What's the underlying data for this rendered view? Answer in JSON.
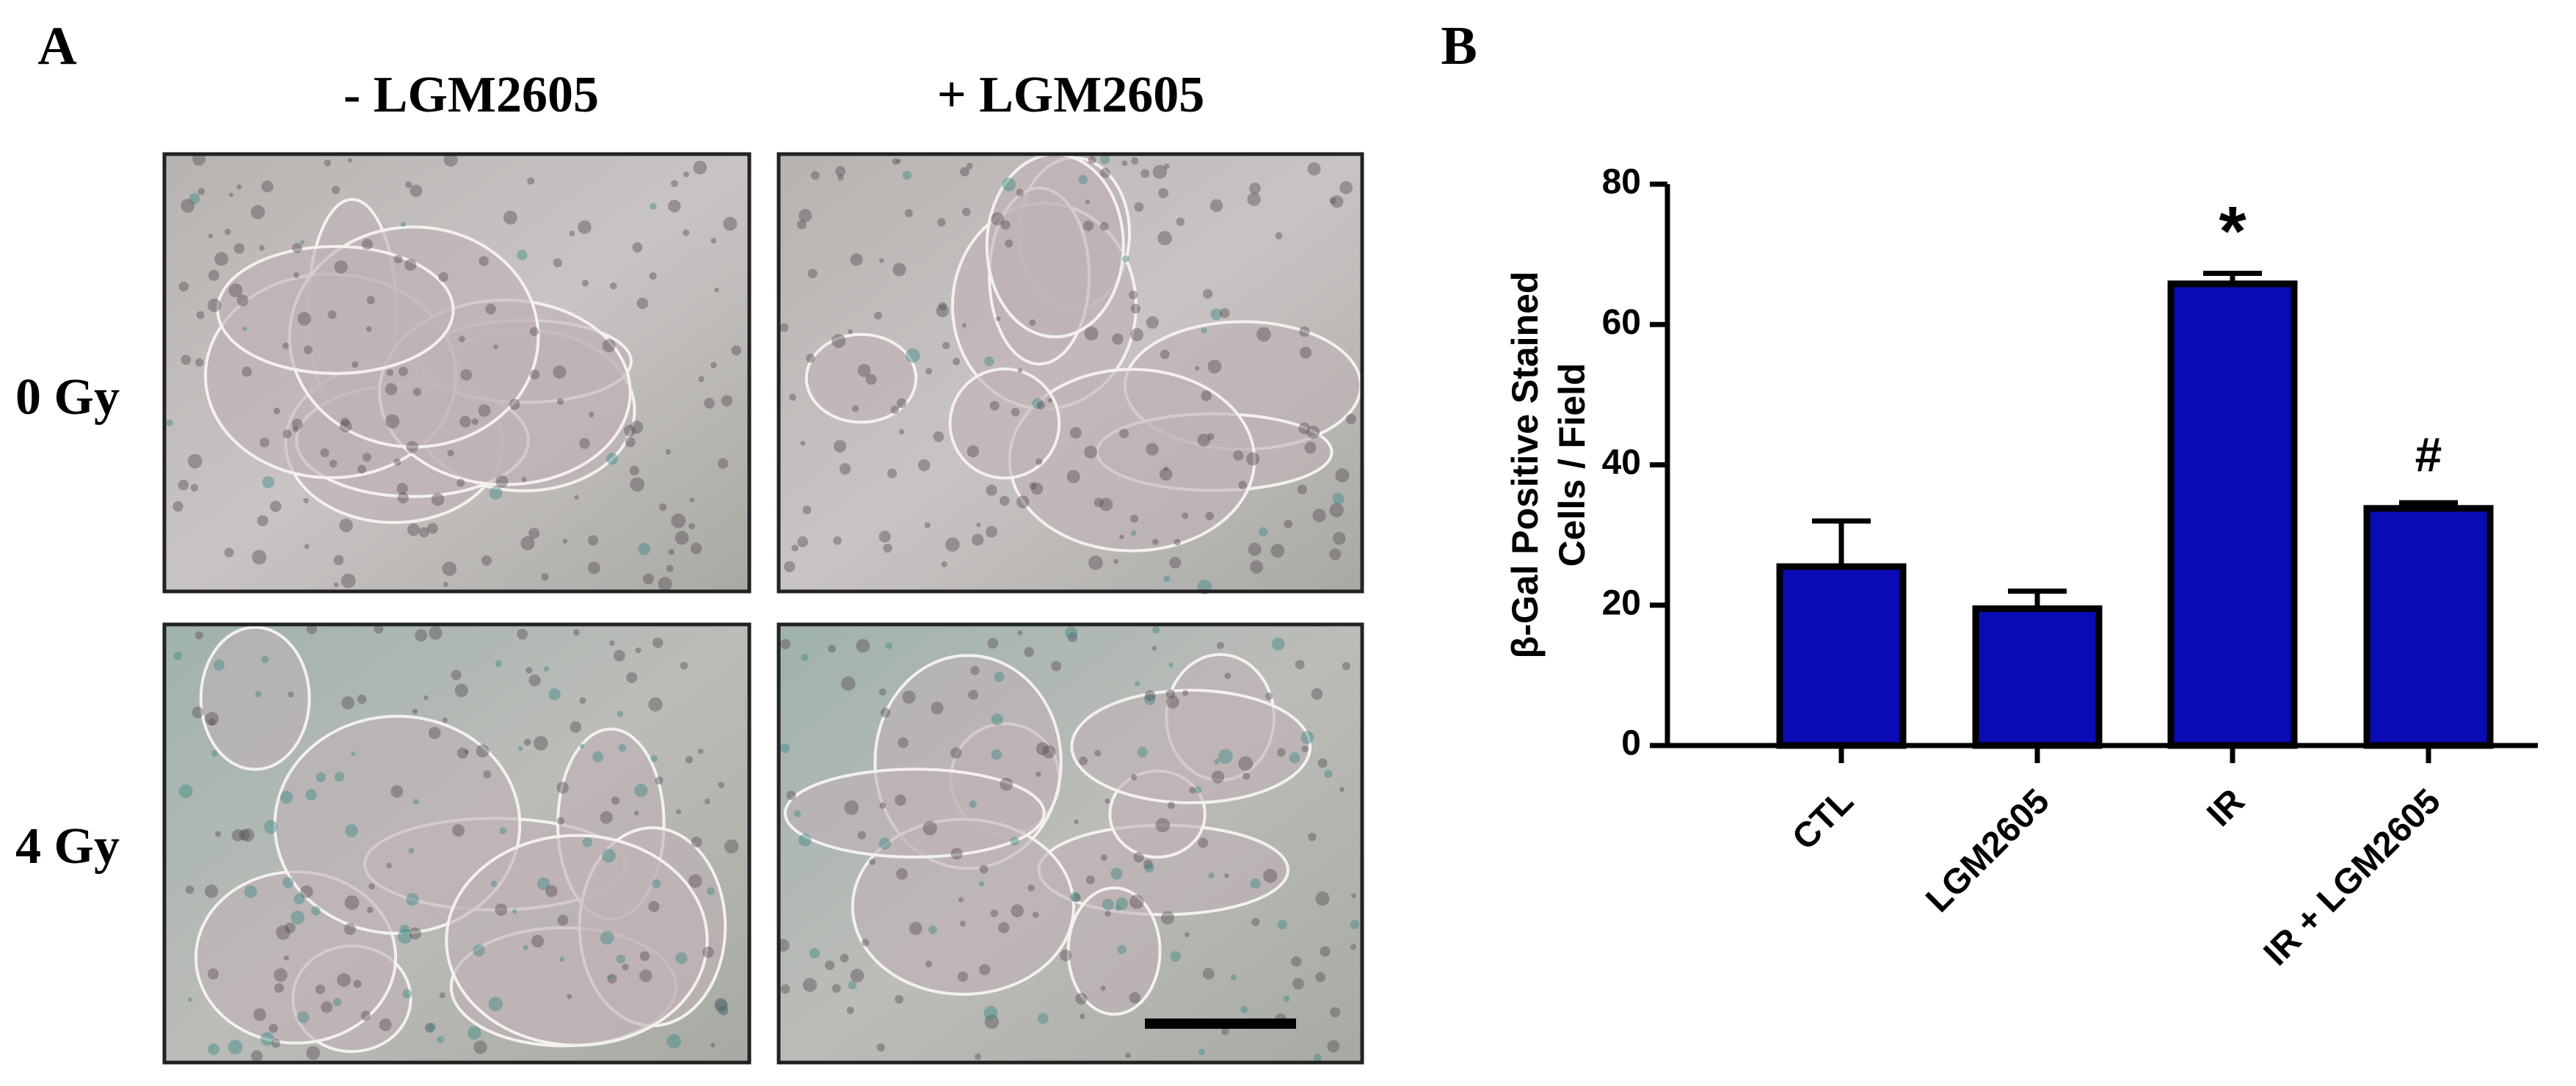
{
  "panel_a": {
    "label": "A",
    "columns": [
      "- LGM2605",
      "+ LGM2605"
    ],
    "rows": [
      "0 Gy",
      "4 Gy"
    ]
  },
  "chart_data": {
    "type": "bar",
    "panel_label": "B",
    "ylabel": [
      "β-Gal Positive Stained",
      "Cells / Field"
    ],
    "categories": [
      "CTL",
      "LGM2605",
      "IR",
      "IR + LGM2605"
    ],
    "values": [
      25.5,
      19.5,
      65.8,
      33.8
    ],
    "errors": [
      6.5,
      2.5,
      1.5,
      0.8
    ],
    "color": "#0b0bb5",
    "ylim": [
      0,
      80
    ],
    "yticks": [
      0,
      20,
      40,
      60,
      80
    ],
    "annotations": [
      {
        "text": "*",
        "category": "IR"
      },
      {
        "text": "#",
        "category": "IR + LGM2605"
      }
    ]
  }
}
